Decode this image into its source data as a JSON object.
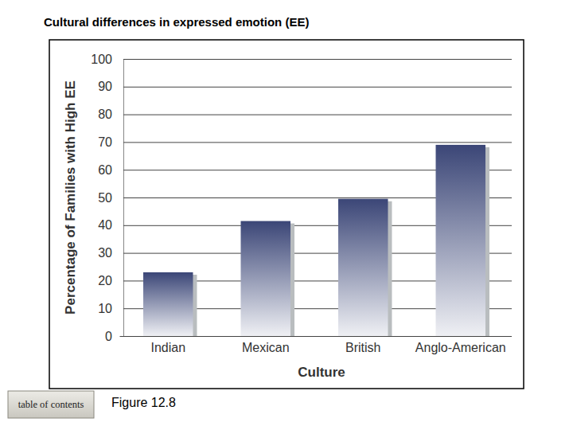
{
  "chart_data": {
    "type": "bar",
    "title": "Cultural differences in expressed emotion (EE)",
    "x_label": "Culture",
    "y_label": "Percentage of Families with High EE",
    "categories": [
      "Indian",
      "Mexican",
      "British",
      "Anglo-American"
    ],
    "values": [
      23,
      41.5,
      49.5,
      69
    ],
    "color": "#3b4677",
    "ylim": [
      0,
      100
    ],
    "yticks": [
      0,
      10,
      20,
      30,
      40,
      50,
      60,
      70,
      80,
      90,
      100
    ],
    "grid": true,
    "annotations": [
      "table of contents",
      "Figure 12.8"
    ]
  }
}
